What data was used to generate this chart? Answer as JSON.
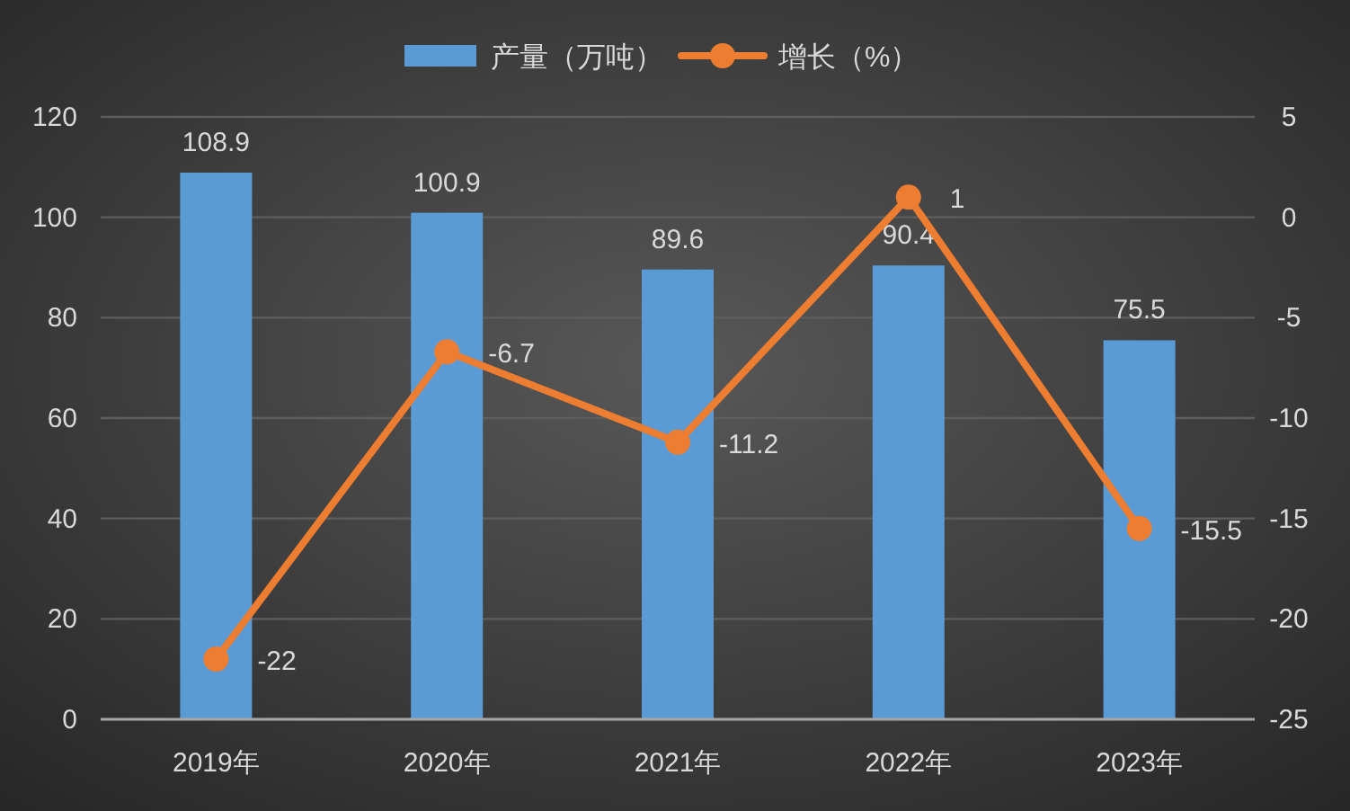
{
  "chart_data": {
    "type": "bar",
    "categories": [
      "2019年",
      "2020年",
      "2021年",
      "2022年",
      "2023年"
    ],
    "series": [
      {
        "name": "产量（万吨）",
        "color": "#5b9bd5",
        "values": [
          108.9,
          100.9,
          89.6,
          90.4,
          75.5
        ]
      },
      {
        "name": "增长（%）",
        "type": "line",
        "axis": "y2",
        "color": "#ed7d31",
        "values": [
          -22,
          -6.7,
          -11.2,
          1,
          -15.5
        ]
      }
    ],
    "ylim": [
      0,
      120
    ],
    "yticks": [
      0,
      20,
      40,
      60,
      80,
      100,
      120
    ],
    "y2lim": [
      -25,
      5
    ],
    "y2ticks": [
      5,
      0,
      -5,
      -10,
      -15,
      -20,
      -25
    ],
    "grid": "y",
    "legend": "top",
    "marker": "circle",
    "data_labels": true
  }
}
